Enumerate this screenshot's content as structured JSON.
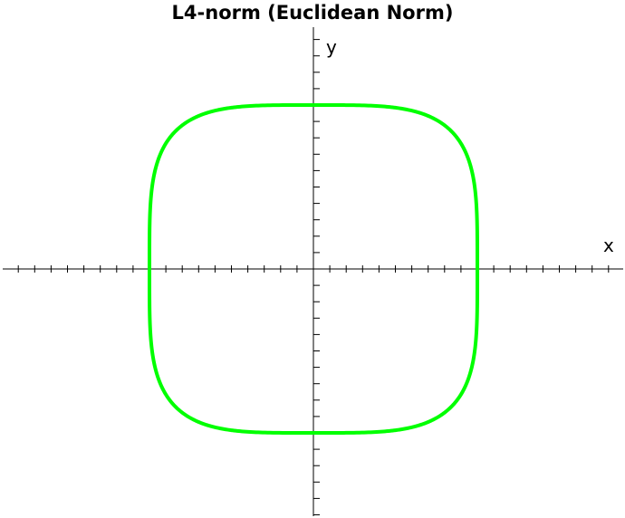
{
  "chart_data": {
    "type": "line",
    "title": "L4-norm (Euclidean Norm)",
    "xlabel": "x",
    "ylabel": "y",
    "xlim": [
      -1.9,
      1.9
    ],
    "ylim": [
      -1.5,
      1.5
    ],
    "grid": false,
    "series": [
      {
        "curve": "|x|^4 + |y|^4 = 1",
        "p": 4,
        "radius": 1,
        "color": "#00ff00"
      }
    ],
    "colors": {
      "curve": "#00ff00",
      "axes": "#000000"
    },
    "tick_spacing": 0.1
  }
}
